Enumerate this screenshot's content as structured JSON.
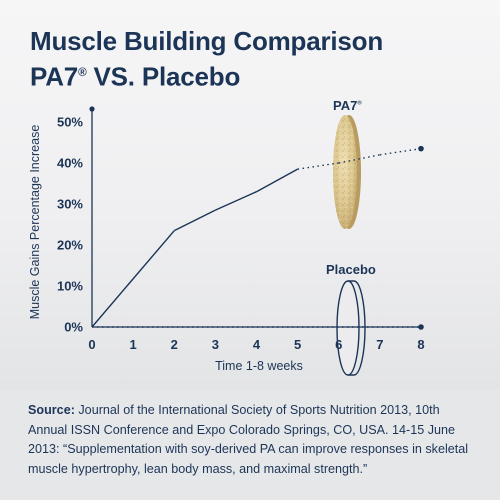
{
  "title_line1": "Muscle Building Comparison",
  "title_line2_main": "PA7",
  "title_line2_reg": "®",
  "title_line2_rest": " VS. Placebo",
  "chart_data": {
    "type": "line",
    "xlabel": "Time 1-8 weeks",
    "ylabel": "Muscle Gains Percentage Increase",
    "xlim": [
      0,
      8
    ],
    "ylim": [
      0,
      50
    ],
    "x_ticks": [
      "0",
      "1",
      "2",
      "3",
      "4",
      "5",
      "6",
      "7",
      "8"
    ],
    "y_ticks": [
      "0%",
      "10%",
      "20%",
      "30%",
      "40%",
      "50%"
    ],
    "series": [
      {
        "name": "PA7®",
        "x": [
          0,
          2,
          3,
          4,
          5,
          6,
          7,
          8
        ],
        "y": [
          0,
          23.5,
          28.5,
          33,
          38.5,
          40,
          42,
          43.5
        ]
      },
      {
        "name": "Placebo",
        "x": [
          0,
          8
        ],
        "y": [
          0,
          0
        ]
      }
    ],
    "grid": false
  },
  "labels": {
    "pa7_main": "PA7",
    "pa7_reg": "®",
    "placebo": "Placebo"
  },
  "source": {
    "label": "Source:",
    "text": " Journal of the International Society of Sports Nutrition 2013, 10th Annual ISSN Conference and Expo Colorado Springs, CO, USA. 14-15 June 2013: “Supplementation with soy-derived PA can improve responses in skeletal muscle hypertrophy, lean body mass, and maximal strength.”"
  },
  "colors": {
    "ink": "#1c3557",
    "pill": "#d9c48e"
  }
}
